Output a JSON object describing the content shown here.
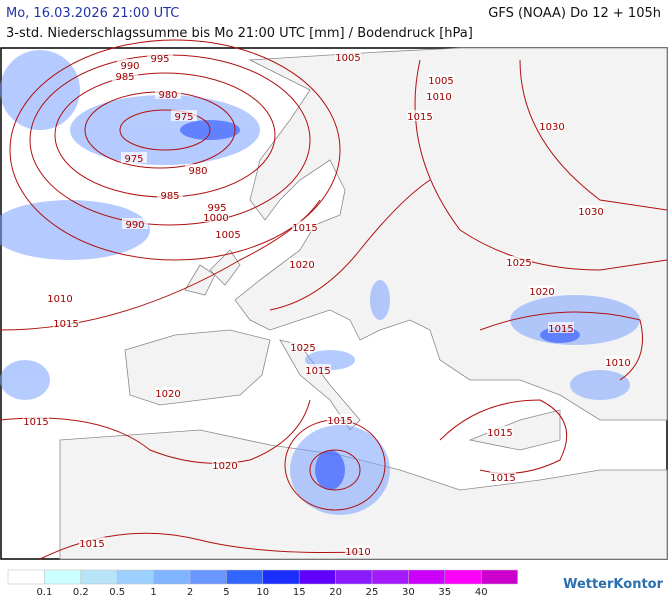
{
  "header": {
    "left_title": "Mo, 16.03.2026 21:00 UTC",
    "right_title": "GFS (NOAA) Do 12 + 105h",
    "subtitle": "3-std. Niederschlagssumme bis Mo 21:00 UTC [mm] / Bodendruck [hPa]"
  },
  "isobar_labels": [
    995,
    990,
    985,
    980,
    975,
    975,
    980,
    985,
    990,
    995,
    1000,
    1005,
    1005,
    1005,
    1010,
    1015,
    1030,
    1030,
    1015,
    1020,
    1025,
    1020,
    1010,
    1015,
    1015,
    1010,
    1025,
    1015,
    1020,
    1015,
    1015,
    1015,
    1020,
    1015,
    1015,
    1010
  ],
  "legend": {
    "colors": [
      "#ffffff",
      "#ccffff",
      "#b8e4f8",
      "#9cd0ff",
      "#80b4ff",
      "#6a96ff",
      "#3366ff",
      "#1a2eff",
      "#6000ff",
      "#8a1aff",
      "#a41aff",
      "#cc00ff",
      "#ff00ff",
      "#cc00cc"
    ],
    "labels": [
      0.1,
      0.2,
      0.5,
      1,
      2,
      5,
      10,
      15,
      20,
      25,
      30,
      35,
      40
    ]
  },
  "brand": "WetterKontor"
}
